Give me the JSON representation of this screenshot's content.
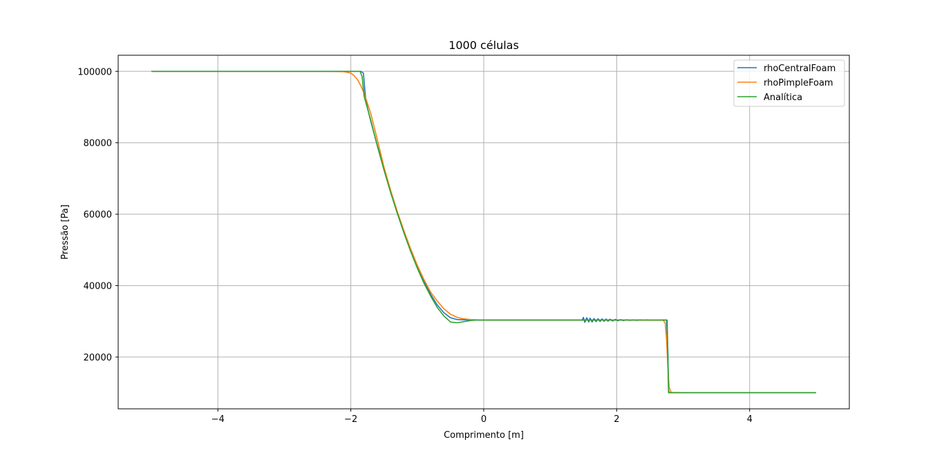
{
  "chart_data": {
    "type": "line",
    "title": "1000 células",
    "xlabel": "Comprimento [m]",
    "ylabel": "Pressão [Pa]",
    "xlim": [
      -5.5,
      5.5
    ],
    "ylim": [
      5500,
      104500
    ],
    "xticks": [
      -4,
      -2,
      0,
      2,
      4
    ],
    "xtick_labels": [
      "−4",
      "−2",
      "0",
      "2",
      "4"
    ],
    "yticks": [
      20000,
      40000,
      60000,
      80000,
      100000
    ],
    "ytick_labels": [
      "20000",
      "40000",
      "60000",
      "80000",
      "100000"
    ],
    "grid": true,
    "legend_position": "top-right",
    "series": [
      {
        "name": "rhoCentralFoam",
        "color": "#1f77b4",
        "x": [
          -5.0,
          -2.0,
          -1.85,
          -1.81,
          -1.79,
          -1.77,
          -1.75,
          -1.7,
          -1.6,
          -1.5,
          -1.4,
          -1.3,
          -1.2,
          -1.1,
          -1.0,
          -0.9,
          -0.8,
          -0.7,
          -0.6,
          -0.5,
          -0.4,
          -0.3,
          -0.2,
          -0.12,
          0.0,
          0.5,
          1.0,
          1.48,
          1.5,
          1.52,
          1.55,
          1.58,
          1.6,
          1.63,
          1.66,
          1.69,
          1.72,
          1.75,
          1.78,
          1.81,
          1.84,
          1.87,
          1.9,
          1.94,
          1.98,
          2.02,
          2.06,
          2.1,
          2.15,
          2.2,
          2.25,
          2.3,
          2.35,
          2.4,
          2.45,
          2.5,
          2.55,
          2.6,
          2.65,
          2.7,
          2.75,
          2.77,
          2.78,
          2.8,
          3.0,
          4.0,
          5.0
        ],
        "y": [
          100000,
          100000,
          100000,
          99500,
          95000,
          91500,
          89800,
          86000,
          79200,
          72600,
          66300,
          60600,
          55200,
          50100,
          45400,
          41200,
          37600,
          34600,
          32400,
          31000,
          30500,
          30400,
          30350,
          30350,
          30350,
          30350,
          30350,
          30350,
          31100,
          29700,
          31000,
          29800,
          30900,
          29800,
          30800,
          29900,
          30750,
          29950,
          30700,
          30000,
          30650,
          30050,
          30600,
          30100,
          30550,
          30150,
          30500,
          30200,
          30450,
          30250,
          30400,
          30250,
          30400,
          30300,
          30400,
          30300,
          30350,
          30300,
          30350,
          30350,
          30350,
          22000,
          10500,
          10000,
          10000,
          10000,
          10000
        ]
      },
      {
        "name": "rhoPimpleFoam",
        "color": "#ff7f0e",
        "x": [
          -5.0,
          -2.3,
          -2.1,
          -2.0,
          -1.95,
          -1.9,
          -1.85,
          -1.8,
          -1.7,
          -1.6,
          -1.5,
          -1.4,
          -1.3,
          -1.2,
          -1.1,
          -1.0,
          -0.9,
          -0.8,
          -0.7,
          -0.6,
          -0.5,
          -0.4,
          -0.3,
          -0.2,
          -0.1,
          0.0,
          0.1,
          0.2,
          0.5,
          1.0,
          2.0,
          2.7,
          2.73,
          2.75,
          2.77,
          2.79,
          2.82,
          3.0,
          4.0,
          5.0
        ],
        "y": [
          100000,
          100000,
          99900,
          99500,
          98800,
          97700,
          96000,
          93900,
          88200,
          80800,
          73100,
          66600,
          60700,
          55300,
          50300,
          45700,
          41700,
          38200,
          35700,
          33500,
          32000,
          31100,
          30700,
          30500,
          30400,
          30350,
          30350,
          30350,
          30350,
          30350,
          30350,
          30300,
          29500,
          25000,
          17000,
          11500,
          10100,
          10000,
          10000,
          10000
        ]
      },
      {
        "name": "Analítica",
        "color": "#2ca02c",
        "x": [
          -5.0,
          -1.86,
          -1.83,
          -1.8,
          -1.7,
          -1.6,
          -1.5,
          -1.4,
          -1.3,
          -1.2,
          -1.1,
          -1.0,
          -0.9,
          -0.8,
          -0.7,
          -0.6,
          -0.5,
          -0.4,
          -0.3,
          -0.2,
          -0.12,
          0.0,
          1.0,
          2.0,
          2.76,
          2.78,
          3.0,
          4.0,
          5.0
        ],
        "y": [
          100000,
          100000,
          98500,
          93000,
          86300,
          79000,
          72300,
          66000,
          60200,
          54700,
          49600,
          44900,
          40700,
          37100,
          33900,
          31500,
          29800,
          29600,
          29900,
          30200,
          30350,
          30350,
          30350,
          30350,
          30350,
          10000,
          10000,
          10000,
          10000
        ]
      }
    ]
  }
}
